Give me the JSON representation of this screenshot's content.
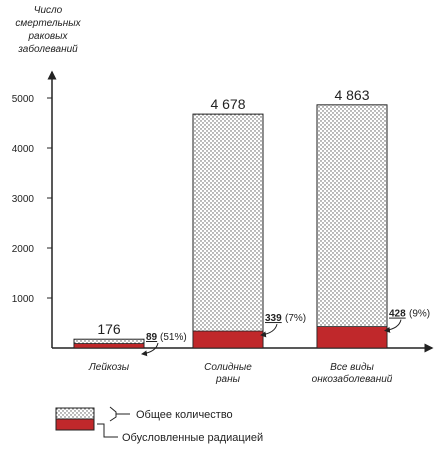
{
  "chart_data": {
    "type": "bar",
    "ylabel_lines": [
      "Число",
      "смертельных",
      "раковых",
      "заболеваний"
    ],
    "yticks": [
      1000,
      2000,
      3000,
      4000,
      5000
    ],
    "ylim": [
      0,
      5000
    ],
    "categories": [
      [
        "Лейкозы"
      ],
      [
        "Солидные",
        "раны"
      ],
      [
        "Все виды",
        "онкозаболеваний"
      ]
    ],
    "totals": [
      176,
      4678,
      4863
    ],
    "total_labels": [
      "176",
      "4 678",
      "4 863"
    ],
    "radiation": [
      89,
      339,
      428
    ],
    "radiation_labels": [
      "89",
      "339",
      "428"
    ],
    "radiation_pct": [
      "(51%)",
      "(7%)",
      "(9%)"
    ],
    "series": [
      {
        "name": "Общее количество",
        "values": [
          176,
          4678,
          4863
        ],
        "pattern": "dots"
      },
      {
        "name": "Обусловленные радиацией",
        "values": [
          89,
          339,
          428
        ],
        "color": "#c0282b"
      }
    ],
    "grid": false,
    "legend_position": "bottom-left"
  }
}
